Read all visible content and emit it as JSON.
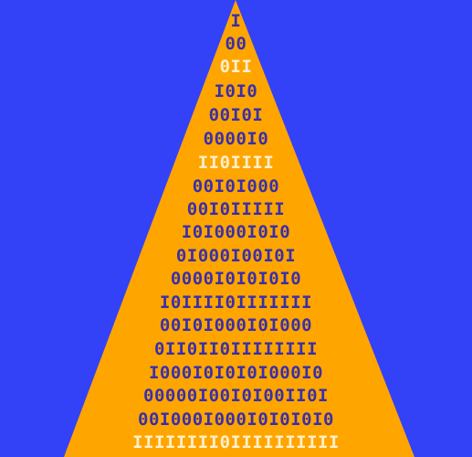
{
  "colors": {
    "background": "#3341f7",
    "triangle": "#ffa500",
    "dark_text": "#3a2fa8",
    "light_text": "#fff0cc"
  },
  "rows": [
    {
      "text": "I",
      "tone": "dark"
    },
    {
      "text": "00",
      "tone": "dark"
    },
    {
      "text": "0II",
      "tone": "light"
    },
    {
      "text": "I0I0",
      "tone": "dark"
    },
    {
      "text": "00I0I",
      "tone": "dark"
    },
    {
      "text": "0000I0",
      "tone": "dark"
    },
    {
      "text": "II0IIII",
      "tone": "light"
    },
    {
      "text": "00I0I000",
      "tone": "dark"
    },
    {
      "text": "00I0IIIII",
      "tone": "dark"
    },
    {
      "text": "I0I000I0I0",
      "tone": "dark"
    },
    {
      "text": "0I000I00I0I",
      "tone": "dark"
    },
    {
      "text": "0000I0I0I0I0",
      "tone": "dark"
    },
    {
      "text": "I0IIII0IIIIIII",
      "tone": "dark"
    },
    {
      "text": "00I0I000I0I000",
      "tone": "dark"
    },
    {
      "text": "0II0II0IIIIIIII",
      "tone": "dark"
    },
    {
      "text": "I000I0I0I0I000I0",
      "tone": "dark"
    },
    {
      "text": "00000I00I0I00II0I",
      "tone": "dark"
    },
    {
      "text": "00I000I000I0I0I0I0",
      "tone": "dark"
    },
    {
      "text": "IIIIIIII0IIIIIIIIII",
      "tone": "light"
    }
  ]
}
